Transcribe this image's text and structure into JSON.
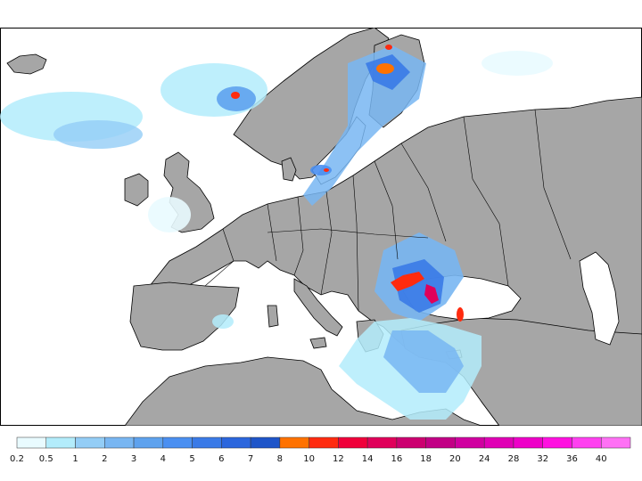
{
  "map": {
    "region": "Europe",
    "colors": {
      "background": "#ffffff",
      "land": "#a6a6a6",
      "border": "#000000"
    }
  },
  "legend": {
    "labels": [
      "0.2",
      "0.5",
      "1",
      "2",
      "3",
      "4",
      "5",
      "6",
      "7",
      "8",
      "10",
      "12",
      "14",
      "16",
      "18",
      "20",
      "24",
      "28",
      "32",
      "36",
      "40"
    ],
    "colors": [
      "#e9fbff",
      "#b3ecfb",
      "#93cdf6",
      "#78b6f2",
      "#5ea2ee",
      "#4a8ff1",
      "#3a7ae7",
      "#2b66dd",
      "#1e55c9",
      "#ff7200",
      "#ff2b0f",
      "#f0003a",
      "#e0005a",
      "#cc0070",
      "#c20085",
      "#d000a0",
      "#e000b5",
      "#ee00c8",
      "#ff10e0",
      "#ff40f0",
      "#ff70f5"
    ]
  }
}
